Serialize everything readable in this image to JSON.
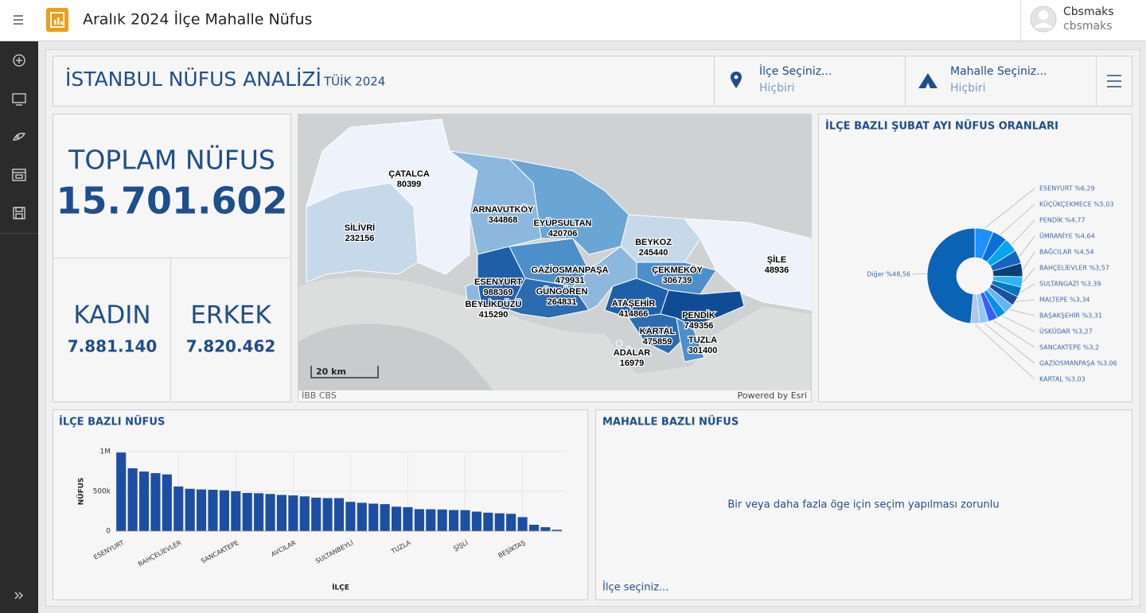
{
  "app": {
    "title": "Aralık 2024 İlçe Mahalle Nüfus",
    "user_name": "Cbsmaks",
    "user_id": "cbsmaks"
  },
  "header": {
    "title": "İSTANBUL NÜFUS ANALİZİ",
    "subtitle": "TÜİK 2024",
    "filters": [
      {
        "label": "İlçe Seçiniz...",
        "value": "Hiçbiri"
      },
      {
        "label": "Mahalle Seçiniz...",
        "value": "Hiçbiri"
      }
    ]
  },
  "kpi": {
    "total_label": "TOPLAM NÜFUS",
    "total": "15.701.602",
    "female_label": "KADIN",
    "female": "7.881.140",
    "male_label": "ERKEK",
    "male": "7.820.462"
  },
  "map": {
    "districts": [
      {
        "name": "ÇATALCA",
        "population": 80399
      },
      {
        "name": "SİLİVRİ",
        "population": 232156
      },
      {
        "name": "ARNAVUTKÖY",
        "population": 344868
      },
      {
        "name": "EYÜPSULTAN",
        "population": 420706
      },
      {
        "name": "BEYKOZ",
        "population": 245440
      },
      {
        "name": "ŞİLE",
        "population": 48936
      },
      {
        "name": "GAZİOSMANPAŞA",
        "population": 479931
      },
      {
        "name": "ESENYURT",
        "population": 988369
      },
      {
        "name": "GÜNGÖREN",
        "population": 264831
      },
      {
        "name": "BEYLİKDÜZÜ",
        "population": 415290
      },
      {
        "name": "ÇEKMEKÖY",
        "population": 306739
      },
      {
        "name": "ATAŞEHİR",
        "population": 414866
      },
      {
        "name": "PENDİK",
        "population": 749356
      },
      {
        "name": "KARTAL",
        "population": 475859
      },
      {
        "name": "TUZLA",
        "population": 301400
      },
      {
        "name": "ADALAR",
        "population": 16979
      }
    ],
    "scale": "20 km",
    "source": "İBB CBS",
    "credit": "Powered by Esri"
  },
  "chart_data": [
    {
      "type": "pie",
      "title": "İLÇE BAZLI ŞUBAT AYI NÜFUS ORANLARI",
      "values": [
        6.29,
        5.03,
        4.77,
        4.64,
        4.54,
        3.57,
        3.39,
        3.34,
        3.31,
        3.27,
        3.2,
        3.06,
        3.03,
        48.56
      ],
      "value_labels": [
        "ESENYURT %6,29",
        "KÜÇÜKÇEKMECE %5,03",
        "PENDİK %4,77",
        "ÜMRANİYE %4,64",
        "BAĞCILAR %4,54",
        "BAHÇELİEVLER %3,57",
        "SULTANGAZİ %3,39",
        "MALTEPE %3,34",
        "BAŞAKŞEHİR %3,31",
        "ÜSKÜDAR %3,27",
        "SANCAKTEPE %3,2",
        "GAZİOSMANPAŞA %3,06",
        "KARTAL %3,03",
        "Diğer %48,56"
      ],
      "colors": [
        "#1e90ff",
        "#0a6fd6",
        "#00a6f0",
        "#1565c0",
        "#0d3c78",
        "#29b6f6",
        "#0277bd",
        "#1a4f9c",
        "#64b5f6",
        "#0091ea",
        "#3d5afe",
        "#90caf9",
        "#b3c7e6",
        "#0b63b5"
      ]
    },
    {
      "type": "bar",
      "title": "İLÇE BAZLI NÜFUS",
      "x_label": "İLÇE",
      "y_label": "NÜFUS",
      "categories": [
        "ESENYURT",
        null,
        null,
        null,
        null,
        "BAHÇELİEVLER",
        null,
        null,
        null,
        null,
        "SANCAKTEPE",
        null,
        null,
        null,
        null,
        "AVCILAR",
        null,
        null,
        null,
        null,
        "SULTANBEYLİ",
        null,
        null,
        null,
        null,
        "TUZLA",
        null,
        null,
        null,
        null,
        "ŞİŞLİ",
        null,
        null,
        null,
        null,
        "BEŞİKTAŞ",
        null,
        null,
        null
      ],
      "values": [
        988000,
        790000,
        749000,
        729000,
        713000,
        561000,
        532000,
        524000,
        520000,
        513000,
        502000,
        480000,
        476000,
        467000,
        455000,
        449000,
        437000,
        421000,
        415000,
        415000,
        368000,
        356000,
        345000,
        339000,
        307000,
        301000,
        276000,
        275000,
        272000,
        265000,
        264000,
        245000,
        232000,
        224000,
        218000,
        176000,
        80000,
        49000,
        17000
      ],
      "color": "#1c4ea3",
      "ylim": [
        0,
        1000000
      ],
      "yticks": [
        0,
        {
          "value": 500000,
          "label": "500k"
        },
        {
          "value": 1000000,
          "label": "1M"
        }
      ],
      "grid": true
    }
  ],
  "mahalle": {
    "title": "MAHALLE BAZLI NÜFUS",
    "message": "Bir veya daha fazla öge için seçim yapılması zorunlu",
    "footer": "İlçe seçiniz..."
  }
}
